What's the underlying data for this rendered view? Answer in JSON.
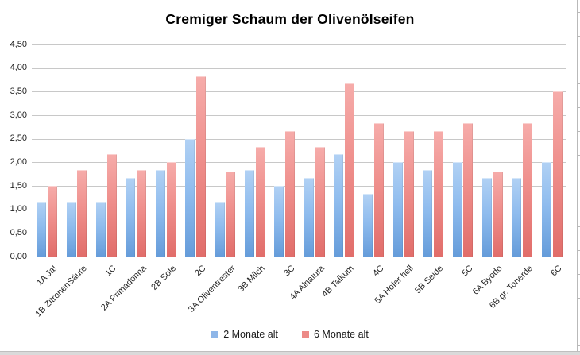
{
  "title": "Cremiger Schaum der Olivenölseifen",
  "chart_data": {
    "type": "bar",
    "title": "Cremiger Schaum der Olivenölseifen",
    "categories": [
      "1A Ja!",
      "1B ZitronenSäure",
      "1C",
      "2A Primadonna",
      "2B Sole",
      "2C",
      "3A Oliventrester",
      "3B Milch",
      "3C",
      "4A Alnatura",
      "4B Talkum",
      "4C",
      "5A Hofer hell",
      "5B Seide",
      "5C",
      "6A Byodo",
      "6B gr. Tonerde",
      "6C"
    ],
    "series": [
      {
        "name": "2 Monate alt",
        "color": "#8eb6e8",
        "values": [
          1.17,
          1.17,
          1.17,
          1.67,
          1.83,
          2.5,
          1.17,
          1.83,
          1.5,
          1.67,
          2.17,
          1.33,
          2.0,
          1.83,
          2.0,
          1.67,
          1.67,
          2.0
        ]
      },
      {
        "name": "6 Monate alt",
        "color": "#ec8a87",
        "values": [
          1.5,
          1.83,
          2.17,
          1.83,
          2.0,
          3.83,
          1.8,
          2.33,
          2.67,
          2.33,
          3.67,
          2.83,
          2.67,
          2.67,
          2.83,
          1.8,
          2.83,
          3.5
        ]
      }
    ],
    "xlabel": "",
    "ylabel": "",
    "ylim": [
      0,
      4.5
    ],
    "ytick_step": 0.5,
    "ytick_labels": [
      "4,50",
      "4,00",
      "3,50",
      "3,00",
      "2,50",
      "2,00",
      "1,50",
      "1,00",
      "0,50",
      "0,00"
    ],
    "grid": true,
    "legend_position": "bottom",
    "decimal_separator": ","
  },
  "colors": {
    "background": "#ffffff",
    "gridline": "#c8c8c8",
    "axis_line": "#9e9e9e",
    "title_text": "#000000",
    "label_text": "#262626",
    "bar_blue": "#8eb6e8",
    "bar_red": "#ec8a87",
    "window_chrome": "#dadada"
  }
}
